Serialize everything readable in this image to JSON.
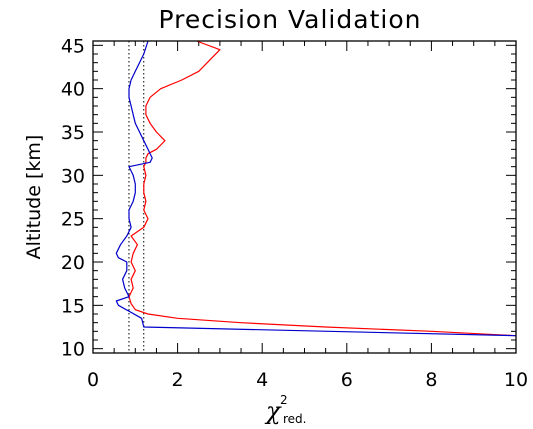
{
  "chart_data": {
    "type": "line",
    "title": "Precision Validation",
    "xlabel": "χ",
    "xlabel_superscript": "2",
    "xlabel_subscript": "red.",
    "ylabel": "Altitude [km]",
    "xlim": [
      0,
      10
    ],
    "ylim": [
      9.5,
      45.5
    ],
    "xticks": [
      0,
      2,
      4,
      6,
      8,
      10
    ],
    "yticks": [
      10,
      15,
      20,
      25,
      30,
      35,
      40,
      45
    ],
    "reference_lines_x": [
      0.85,
      1.2
    ],
    "grid": false,
    "series": [
      {
        "color": "#ff0000",
        "x": [
          10.0,
          8.0,
          5.5,
          3.5,
          2.0,
          1.3,
          1.0,
          0.9,
          0.85,
          0.95,
          0.9,
          1.0,
          0.9,
          0.95,
          1.05,
          0.9,
          1.2,
          1.3,
          1.2,
          1.25,
          1.2,
          1.2,
          1.25,
          1.2,
          1.25,
          1.25,
          1.3,
          1.5,
          1.6,
          1.7,
          1.5,
          1.35,
          1.25,
          1.25,
          1.35,
          1.6,
          2.1,
          2.5,
          2.7,
          3.0,
          2.45
        ],
        "y": [
          11.5,
          12.0,
          12.5,
          13.0,
          13.5,
          14.0,
          14.5,
          15.2,
          16.0,
          17.0,
          18.0,
          19.0,
          20.0,
          21.0,
          22.0,
          23.0,
          24.0,
          25.0,
          26.0,
          27.0,
          28.0,
          29.0,
          30.0,
          31.0,
          31.5,
          32.0,
          32.5,
          33.0,
          33.5,
          34.0,
          35.0,
          36.0,
          37.0,
          38.0,
          39.0,
          40.0,
          41.0,
          42.0,
          43.0,
          44.5,
          45.5
        ]
      },
      {
        "color": "#0000cc",
        "x": [
          10.0,
          1.2,
          1.15,
          0.6,
          0.55,
          0.85,
          0.75,
          0.7,
          0.8,
          0.8,
          0.6,
          0.55,
          0.65,
          0.8,
          0.9,
          0.85,
          0.85,
          0.95,
          1.0,
          1.0,
          0.95,
          0.9,
          0.85,
          1.35,
          1.4,
          1.3,
          1.2,
          1.0,
          0.9,
          0.85,
          0.85,
          0.9,
          1.0,
          1.2,
          1.3
        ],
        "y": [
          11.5,
          12.5,
          13.5,
          15.0,
          15.5,
          16.0,
          17.0,
          18.0,
          19.0,
          20.0,
          20.5,
          21.0,
          22.0,
          23.0,
          24.0,
          25.0,
          26.0,
          27.0,
          28.0,
          29.0,
          30.0,
          30.5,
          31.0,
          31.5,
          32.0,
          33.0,
          34.0,
          36.0,
          38.0,
          39.0,
          40.0,
          41.0,
          42.0,
          44.0,
          45.5
        ]
      }
    ]
  }
}
